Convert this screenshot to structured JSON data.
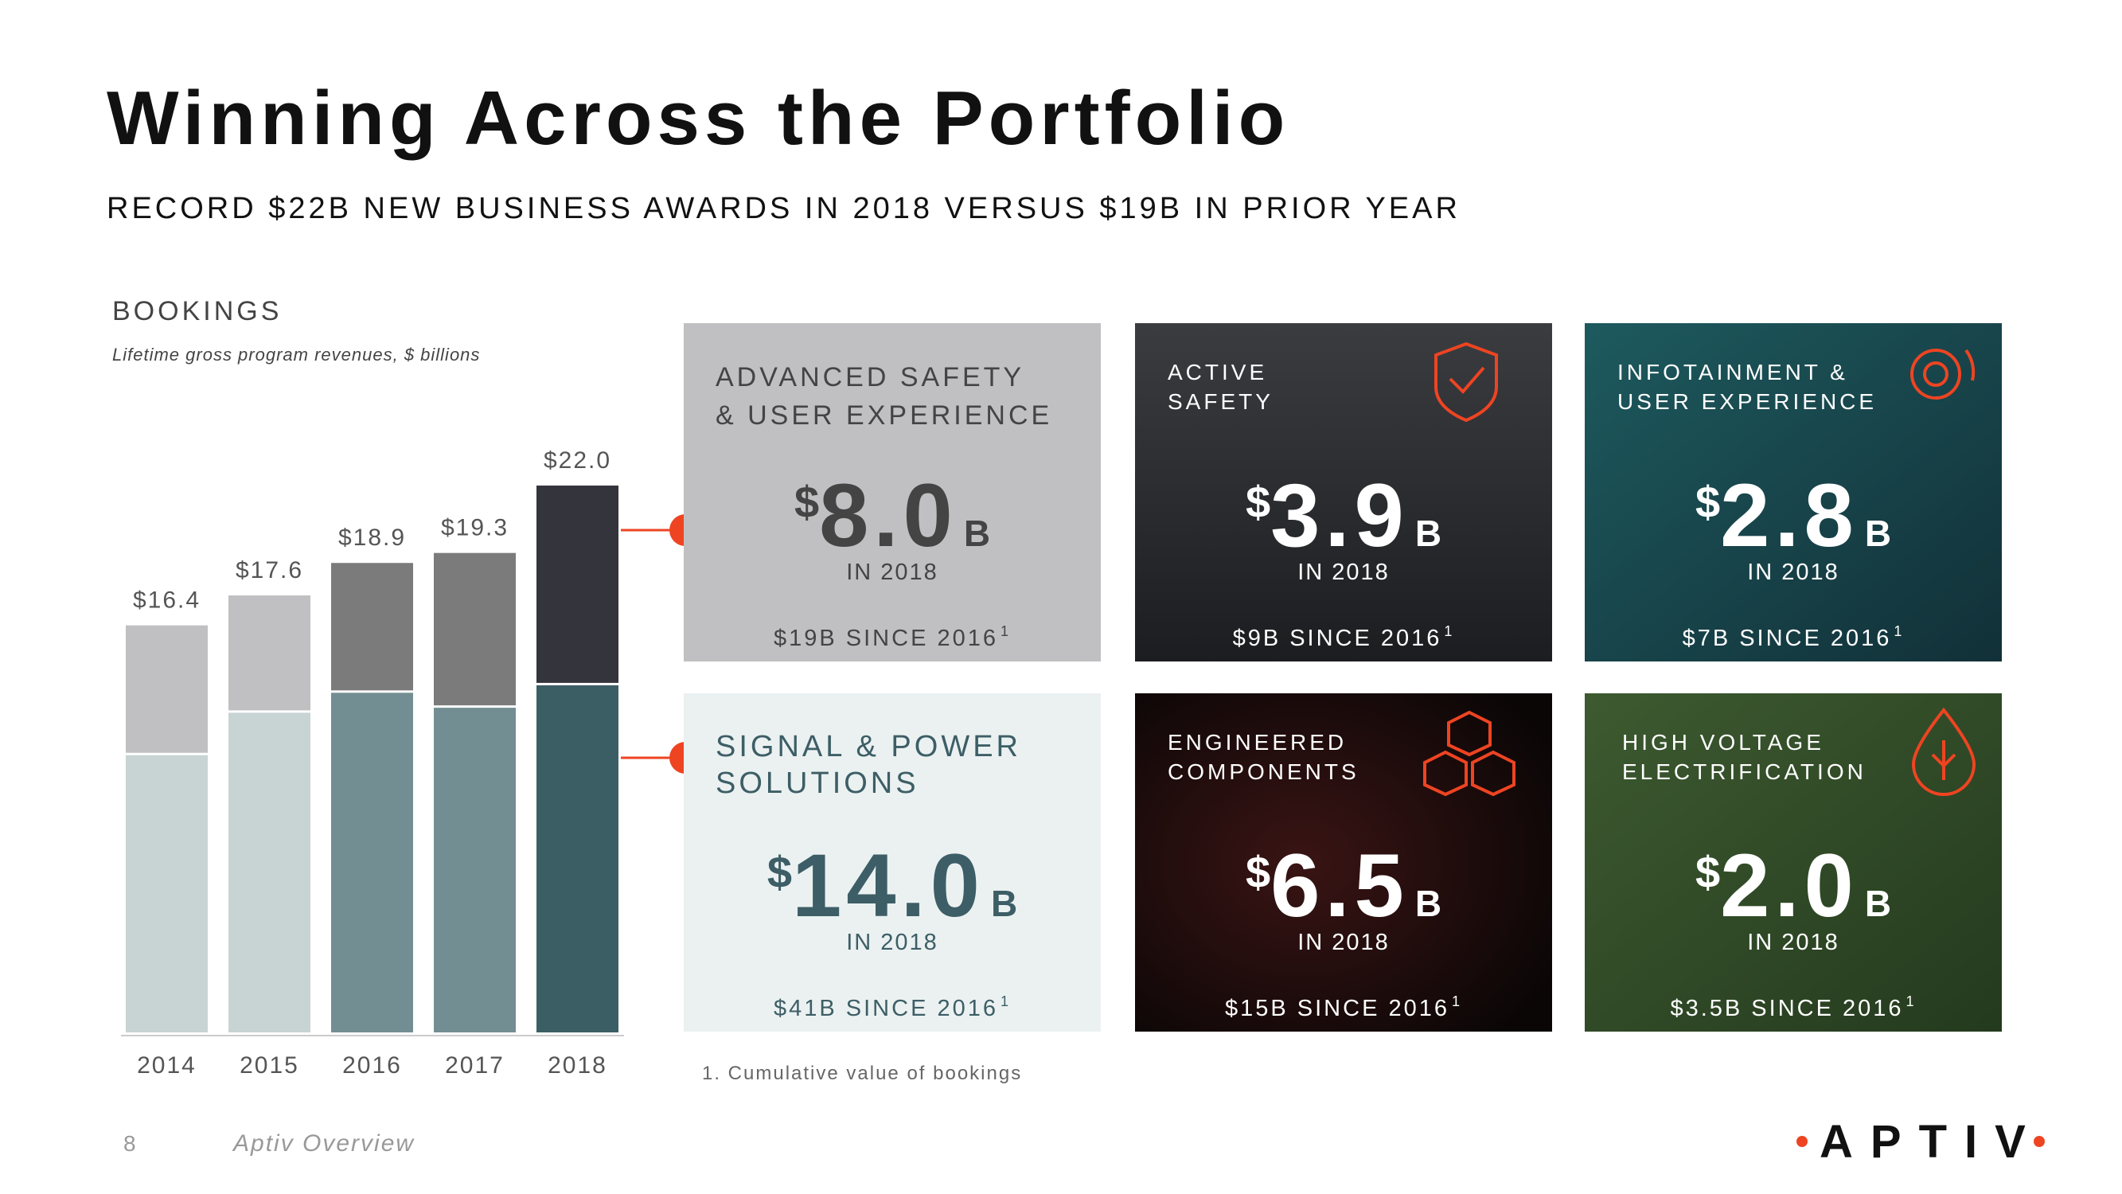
{
  "header": {
    "title": "Winning Across the Portfolio",
    "subtitle": "RECORD $22B NEW BUSINESS AWARDS IN 2018 VERSUS $19B IN PRIOR YEAR"
  },
  "chart_data": {
    "type": "stacked_bar",
    "title": "BOOKINGS",
    "subtitle": "Lifetime gross program revenues, $ billions",
    "categories": [
      "2014",
      "2015",
      "2016",
      "2017",
      "2018"
    ],
    "series": [
      {
        "colors": [
          "#c8d3d4",
          "#c8d3d4",
          "#728e92",
          "#728e92",
          "#3b5e65"
        ],
        "values": [
          11.2,
          12.9,
          13.7,
          13.1,
          14.0
        ]
      },
      {
        "colors": [
          "#c0c0c2",
          "#c0c0c2",
          "#7b7b7b",
          "#7b7b7b",
          "#33343c"
        ],
        "values": [
          5.2,
          4.7,
          5.2,
          6.2,
          8.0
        ]
      }
    ],
    "totals": {
      "values": [
        16.4,
        17.6,
        18.9,
        19.3,
        22.0
      ],
      "value_labels": [
        "$16.4",
        "$17.6",
        "$18.9",
        "$19.3",
        "$22.0"
      ]
    }
  },
  "cards": [
    {
      "title": [
        "ADVANCED SAFETY",
        "& USER EXPERIENCE"
      ],
      "currency": "$",
      "amount": "8.0",
      "unit": "B",
      "period": "IN 2018",
      "since": "$19B SINCE 2016",
      "ref": "1"
    },
    {
      "title": [
        "ACTIVE",
        "SAFETY"
      ],
      "currency": "$",
      "amount": "3.9",
      "unit": "B",
      "period": "IN 2018",
      "since": "$9B SINCE 2016",
      "ref": "1"
    },
    {
      "title": [
        "INFOTAINMENT &",
        "USER EXPERIENCE"
      ],
      "currency": "$",
      "amount": "2.8",
      "unit": "B",
      "period": "IN 2018",
      "since": "$7B SINCE 2016",
      "ref": "1"
    },
    {
      "title": [
        "SIGNAL & POWER",
        "SOLUTIONS"
      ],
      "currency": "$",
      "amount": "14.0",
      "unit": "B",
      "period": "IN 2018",
      "since": "$41B SINCE 2016",
      "ref": "1"
    },
    {
      "title": [
        "ENGINEERED",
        "COMPONENTS"
      ],
      "currency": "$",
      "amount": "6.5",
      "unit": "B",
      "period": "IN 2018",
      "since": "$15B SINCE 2016",
      "ref": "1"
    },
    {
      "title": [
        "HIGH VOLTAGE",
        "ELECTRIFICATION"
      ],
      "currency": "$",
      "amount": "2.0",
      "unit": "B",
      "period": "IN 2018",
      "since": "$3.5B SINCE 2016",
      "ref": "1"
    }
  ],
  "footnote": "1. Cumulative value of bookings",
  "footer": {
    "page": "8",
    "label": "Aptiv Overview",
    "logo": "APTIV"
  }
}
